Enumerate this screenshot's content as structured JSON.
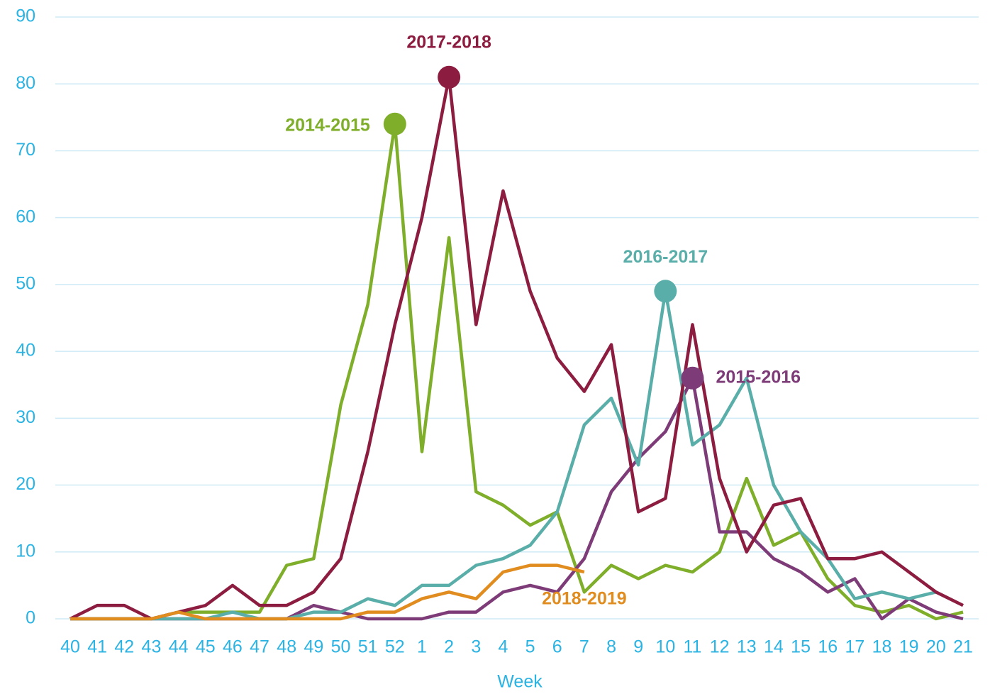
{
  "chart_data": {
    "type": "line",
    "x_label": "Week",
    "categories": [
      "40",
      "41",
      "42",
      "43",
      "44",
      "45",
      "46",
      "47",
      "48",
      "49",
      "50",
      "51",
      "52",
      "1",
      "2",
      "3",
      "4",
      "5",
      "6",
      "7",
      "8",
      "9",
      "10",
      "11",
      "12",
      "13",
      "14",
      "15",
      "16",
      "17",
      "18",
      "19",
      "20",
      "21"
    ],
    "ylim": [
      0,
      90
    ],
    "yticks": [
      0,
      10,
      20,
      30,
      40,
      50,
      60,
      70,
      80,
      90
    ],
    "grid": true,
    "series": [
      {
        "name": "2014-2015",
        "color": "#7fae2b",
        "peak_marker": true,
        "values": [
          0,
          0,
          0,
          0,
          1,
          1,
          1,
          1,
          8,
          9,
          32,
          47,
          74,
          25,
          57,
          19,
          17,
          14,
          16,
          4,
          8,
          6,
          8,
          7,
          10,
          21,
          11,
          13,
          6,
          2,
          1,
          2,
          0,
          1
        ]
      },
      {
        "name": "2015-2016",
        "color": "#7d3b78",
        "peak_marker": true,
        "values": [
          0,
          0,
          0,
          0,
          0,
          0,
          0,
          0,
          0,
          2,
          1,
          0,
          0,
          0,
          1,
          1,
          4,
          5,
          4,
          9,
          19,
          24,
          28,
          36,
          13,
          13,
          9,
          7,
          4,
          6,
          0,
          3,
          1,
          0
        ]
      },
      {
        "name": "2016-2017",
        "color": "#5aaea9",
        "peak_marker": true,
        "values": [
          0,
          0,
          0,
          0,
          0,
          0,
          1,
          0,
          0,
          1,
          1,
          3,
          2,
          5,
          5,
          8,
          9,
          11,
          16,
          29,
          33,
          23,
          49,
          26,
          29,
          36,
          20,
          13,
          9,
          3,
          4,
          3,
          4,
          null
        ]
      },
      {
        "name": "2017-2018",
        "color": "#8c1d40",
        "peak_marker": true,
        "values": [
          0,
          2,
          2,
          0,
          1,
          2,
          5,
          2,
          2,
          4,
          9,
          25,
          44,
          60,
          81,
          44,
          64,
          49,
          39,
          34,
          41,
          16,
          18,
          44,
          21,
          10,
          17,
          18,
          9,
          9,
          10,
          7,
          4,
          2
        ]
      },
      {
        "name": "2018-2019",
        "color": "#e08c1e",
        "peak_marker": false,
        "values": [
          0,
          0,
          0,
          0,
          1,
          0,
          0,
          0,
          0,
          0,
          0,
          1,
          1,
          3,
          4,
          3,
          7,
          8,
          8,
          7,
          null,
          null,
          null,
          null,
          null,
          null,
          null,
          null,
          null,
          null,
          null,
          null,
          null,
          null
        ]
      }
    ]
  }
}
